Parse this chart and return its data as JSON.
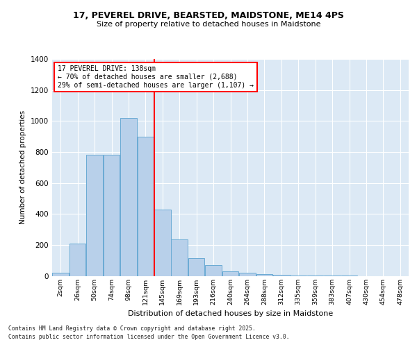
{
  "title_line1": "17, PEVEREL DRIVE, BEARSTED, MAIDSTONE, ME14 4PS",
  "title_line2": "Size of property relative to detached houses in Maidstone",
  "xlabel": "Distribution of detached houses by size in Maidstone",
  "ylabel": "Number of detached properties",
  "bar_color": "#b8d0ea",
  "bar_edge_color": "#6aaad4",
  "background_color": "#dce9f5",
  "grid_color": "#ffffff",
  "categories": [
    "2sqm",
    "26sqm",
    "50sqm",
    "74sqm",
    "98sqm",
    "121sqm",
    "145sqm",
    "169sqm",
    "193sqm",
    "216sqm",
    "240sqm",
    "264sqm",
    "288sqm",
    "312sqm",
    "335sqm",
    "359sqm",
    "383sqm",
    "407sqm",
    "430sqm",
    "454sqm",
    "478sqm"
  ],
  "values": [
    20,
    210,
    780,
    780,
    1020,
    900,
    430,
    235,
    115,
    70,
    30,
    20,
    10,
    5,
    3,
    2,
    1,
    1,
    0,
    0,
    0
  ],
  "ylim": [
    0,
    1400
  ],
  "yticks": [
    0,
    200,
    400,
    600,
    800,
    1000,
    1200,
    1400
  ],
  "red_line_x": 5.5,
  "annotation_title": "17 PEVEREL DRIVE: 138sqm",
  "annotation_line2": "← 70% of detached houses are smaller (2,688)",
  "annotation_line3": "29% of semi-detached houses are larger (1,107) →",
  "footer_line1": "Contains HM Land Registry data © Crown copyright and database right 2025.",
  "footer_line2": "Contains public sector information licensed under the Open Government Licence v3.0."
}
